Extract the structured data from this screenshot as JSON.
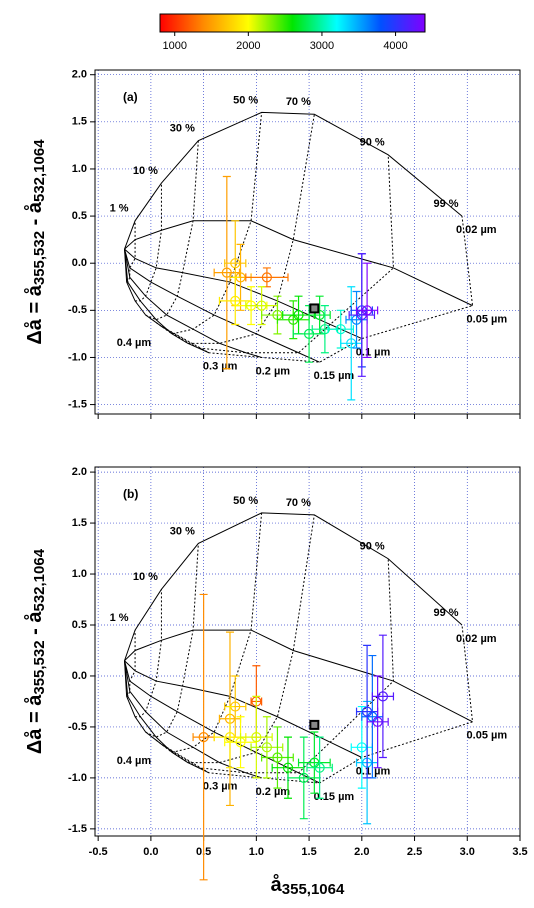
{
  "colorbar": {
    "clim": [
      800,
      4400
    ],
    "ticks": [
      1000,
      2000,
      3000,
      4000
    ],
    "colormap": [
      "#ff0000",
      "#ff8c00",
      "#ffff00",
      "#00e600",
      "#00ffff",
      "#0050ff",
      "#8000ff"
    ]
  },
  "chart_data": [
    {
      "type": "scatter",
      "panel_label": "(a)",
      "ylabel": {
        "main1": "Δå = å",
        "sub1": "355,532",
        "main2": " - å",
        "sub2": "532,1064"
      },
      "xlim": [
        -0.53,
        3.5
      ],
      "ylim": [
        -1.6,
        2.05
      ],
      "grid": true,
      "xticks": [
        -0.5,
        0,
        0.5,
        1,
        1.5,
        2,
        2.5,
        3,
        3.5
      ],
      "yticks": [
        {
          "value": -1.5,
          "label": "-1.5"
        },
        {
          "value": -1,
          "label": "-1.0"
        },
        {
          "value": -0.5,
          "label": "-0.5"
        },
        {
          "value": 0,
          "label": "0.0"
        },
        {
          "value": 0.5,
          "label": "0.5"
        },
        {
          "value": 1,
          "label": "1.0"
        },
        {
          "value": 1.5,
          "label": "1.5"
        },
        {
          "value": 2,
          "label": "2.0"
        }
      ],
      "x": [
        0.72,
        0.8,
        0.85,
        1.1,
        0.8,
        0.95,
        1.05,
        1.2,
        1.35,
        1.4,
        1.6,
        1.5,
        1.65,
        1.8,
        1.9,
        1.95,
        2.0,
        2.0,
        2.05
      ],
      "y": [
        -0.1,
        0.0,
        -0.15,
        -0.15,
        -0.4,
        -0.45,
        -0.45,
        -0.55,
        -0.6,
        -0.55,
        -0.55,
        -0.75,
        -0.7,
        -0.7,
        -0.85,
        -0.6,
        -0.5,
        -0.55,
        -0.5
      ],
      "xerr": [
        0.12,
        0.1,
        0.1,
        0.2,
        0.15,
        0.15,
        0.15,
        0.15,
        0.15,
        0.15,
        0.1,
        0.15,
        0.12,
        0.12,
        0.1,
        0.1,
        0.1,
        0.12,
        0.1
      ],
      "yerr": [
        1.02,
        0.45,
        0.35,
        0.1,
        0.25,
        0.2,
        0.2,
        0.2,
        0.2,
        0.2,
        0.2,
        0.3,
        0.25,
        0.2,
        0.6,
        0.3,
        0.6,
        0.65,
        0.5
      ],
      "c": [
        1500,
        1700,
        1600,
        1300,
        1900,
        2000,
        2100,
        2300,
        2500,
        2600,
        2700,
        2800,
        2900,
        3100,
        3300,
        3600,
        3900,
        4200,
        4400
      ],
      "marker": [
        1.55,
        -0.48
      ],
      "model": {
        "origin": [
          -0.25,
          0.15
        ],
        "sizes": [
          "0.4 µm",
          "0.3 µm",
          "0.2 µm",
          "0.15 µm",
          "0.1 µm",
          "0.05 µm",
          "0.02 µm"
        ],
        "fractions": [
          "1 %",
          "10 %",
          "30 %",
          "50 %",
          "70 %",
          "90 %",
          "99 %"
        ],
        "nodes": [
          [
            [
              -0.23,
              -0.2
            ],
            [
              -0.15,
              -0.4
            ],
            [
              -0.05,
              -0.55
            ],
            [
              0.05,
              -0.63
            ],
            [
              0.1,
              -0.67
            ],
            [
              0.13,
              -0.69
            ],
            [
              0.15,
              -0.7
            ]
          ],
          [
            [
              -0.22,
              -0.2
            ],
            [
              -0.1,
              -0.4
            ],
            [
              0.05,
              -0.6
            ],
            [
              0.2,
              -0.75
            ],
            [
              0.35,
              -0.85
            ],
            [
              0.45,
              -0.9
            ],
            [
              0.55,
              -0.95
            ]
          ],
          [
            [
              -0.2,
              -0.15
            ],
            [
              -0.05,
              -0.35
            ],
            [
              0.15,
              -0.55
            ],
            [
              0.4,
              -0.7
            ],
            [
              0.65,
              -0.85
            ],
            [
              0.9,
              -0.95
            ],
            [
              1.05,
              -1.0
            ]
          ],
          [
            [
              -0.2,
              -0.05
            ],
            [
              0.0,
              -0.2
            ],
            [
              0.25,
              -0.35
            ],
            [
              0.6,
              -0.55
            ],
            [
              1.0,
              -0.75
            ],
            [
              1.4,
              -0.95
            ],
            [
              1.6,
              -1.05
            ]
          ],
          [
            [
              -0.15,
              0.05
            ],
            [
              0.05,
              -0.05
            ],
            [
              0.3,
              -0.1
            ],
            [
              0.75,
              -0.2
            ],
            [
              1.2,
              -0.4
            ],
            [
              1.7,
              -0.65
            ],
            [
              2.0,
              -0.8
            ]
          ],
          [
            [
              -0.15,
              0.25
            ],
            [
              0.1,
              0.35
            ],
            [
              0.4,
              0.45
            ],
            [
              0.95,
              0.45
            ],
            [
              1.35,
              0.25
            ],
            [
              2.3,
              -0.05
            ],
            [
              3.05,
              -0.45
            ]
          ],
          [
            [
              -0.15,
              0.45
            ],
            [
              0.1,
              0.85
            ],
            [
              0.45,
              1.3
            ],
            [
              1.05,
              1.6
            ],
            [
              1.55,
              1.58
            ],
            [
              2.25,
              1.15
            ],
            [
              2.95,
              0.5
            ]
          ]
        ]
      }
    },
    {
      "type": "scatter",
      "panel_label": "(b)",
      "ylabel": {
        "main1": "Δå = å",
        "sub1": "355,532",
        "main2": " - å",
        "sub2": "532,1064"
      },
      "xlabel": {
        "main": "å",
        "sub": "355,1064"
      },
      "xlim": [
        -0.53,
        3.5
      ],
      "ylim": [
        -1.57,
        2.05
      ],
      "grid": true,
      "xticks": [
        {
          "value": -0.5,
          "label": "-0.5"
        },
        {
          "value": 0,
          "label": "0.0"
        },
        {
          "value": 0.5,
          "label": "0.5"
        },
        {
          "value": 1,
          "label": "1.0"
        },
        {
          "value": 1.5,
          "label": "1.5"
        },
        {
          "value": 2,
          "label": "2.0"
        },
        {
          "value": 2.5,
          "label": "2.5"
        },
        {
          "value": 3,
          "label": "3.0"
        },
        {
          "value": 3.5,
          "label": "3.5"
        }
      ],
      "yticks": [
        {
          "value": -1.5,
          "label": "-1.5"
        },
        {
          "value": -1,
          "label": "-1.0"
        },
        {
          "value": -0.5,
          "label": "-0.5"
        },
        {
          "value": 0,
          "label": "0.0"
        },
        {
          "value": 0.5,
          "label": "0.5"
        },
        {
          "value": 1,
          "label": "1.0"
        },
        {
          "value": 1.5,
          "label": "1.5"
        },
        {
          "value": 2,
          "label": "2.0"
        }
      ],
      "x": [
        0.5,
        0.75,
        1.0,
        0.8,
        0.75,
        0.85,
        1.0,
        1.1,
        1.2,
        1.3,
        1.45,
        1.55,
        1.6,
        2.0,
        2.05,
        2.1,
        2.05,
        2.15,
        2.2
      ],
      "y": [
        -0.6,
        -0.42,
        -0.25,
        -0.3,
        -0.6,
        -0.65,
        -0.6,
        -0.7,
        -0.8,
        -0.9,
        -1.0,
        -0.85,
        -0.9,
        -0.7,
        -0.85,
        -0.4,
        -0.35,
        -0.45,
        -0.2
      ],
      "xerr": [
        0.1,
        0.1,
        0.05,
        0.1,
        0.15,
        0.15,
        0.15,
        0.15,
        0.15,
        0.15,
        0.15,
        0.15,
        0.12,
        0.1,
        0.1,
        0.1,
        0.1,
        0.1,
        0.1
      ],
      "yerr": [
        1.4,
        0.85,
        0.35,
        0.3,
        0.3,
        0.25,
        0.4,
        0.3,
        0.3,
        0.3,
        0.4,
        0.3,
        0.3,
        0.4,
        0.6,
        0.6,
        0.65,
        0.45,
        0.6
      ],
      "c": [
        1400,
        1600,
        1200,
        1700,
        1900,
        2000,
        2100,
        2200,
        2400,
        2600,
        2800,
        2700,
        2900,
        3200,
        3400,
        3700,
        4000,
        4300,
        4200
      ],
      "marker": [
        1.55,
        -0.48
      ],
      "model": {
        "origin": [
          -0.25,
          0.15
        ],
        "sizes": [
          "0.4 µm",
          "0.3 µm",
          "0.2 µm",
          "0.15 µm",
          "0.1 µm",
          "0.05 µm",
          "0.02 µm"
        ],
        "fractions": [
          "1 %",
          "10 %",
          "30 %",
          "50 %",
          "70 %",
          "90 %",
          "99 %"
        ],
        "nodes": [
          [
            [
              -0.23,
              -0.2
            ],
            [
              -0.15,
              -0.4
            ],
            [
              -0.05,
              -0.55
            ],
            [
              0.05,
              -0.63
            ],
            [
              0.1,
              -0.67
            ],
            [
              0.13,
              -0.69
            ],
            [
              0.15,
              -0.7
            ]
          ],
          [
            [
              -0.22,
              -0.2
            ],
            [
              -0.1,
              -0.4
            ],
            [
              0.05,
              -0.6
            ],
            [
              0.2,
              -0.75
            ],
            [
              0.35,
              -0.85
            ],
            [
              0.45,
              -0.9
            ],
            [
              0.55,
              -0.95
            ]
          ],
          [
            [
              -0.2,
              -0.15
            ],
            [
              -0.05,
              -0.35
            ],
            [
              0.15,
              -0.55
            ],
            [
              0.4,
              -0.7
            ],
            [
              0.65,
              -0.85
            ],
            [
              0.9,
              -0.95
            ],
            [
              1.05,
              -1.0
            ]
          ],
          [
            [
              -0.2,
              -0.05
            ],
            [
              0.0,
              -0.2
            ],
            [
              0.25,
              -0.35
            ],
            [
              0.6,
              -0.55
            ],
            [
              1.0,
              -0.75
            ],
            [
              1.4,
              -0.95
            ],
            [
              1.6,
              -1.05
            ]
          ],
          [
            [
              -0.15,
              0.05
            ],
            [
              0.05,
              -0.05
            ],
            [
              0.3,
              -0.1
            ],
            [
              0.75,
              -0.2
            ],
            [
              1.2,
              -0.4
            ],
            [
              1.7,
              -0.65
            ],
            [
              2.0,
              -0.8
            ]
          ],
          [
            [
              -0.15,
              0.25
            ],
            [
              0.1,
              0.35
            ],
            [
              0.4,
              0.45
            ],
            [
              0.95,
              0.45
            ],
            [
              1.35,
              0.25
            ],
            [
              2.3,
              -0.05
            ],
            [
              3.05,
              -0.45
            ]
          ],
          [
            [
              -0.15,
              0.45
            ],
            [
              0.1,
              0.85
            ],
            [
              0.45,
              1.3
            ],
            [
              1.05,
              1.6
            ],
            [
              1.55,
              1.58
            ],
            [
              2.25,
              1.15
            ],
            [
              2.95,
              0.5
            ]
          ]
        ]
      }
    }
  ]
}
